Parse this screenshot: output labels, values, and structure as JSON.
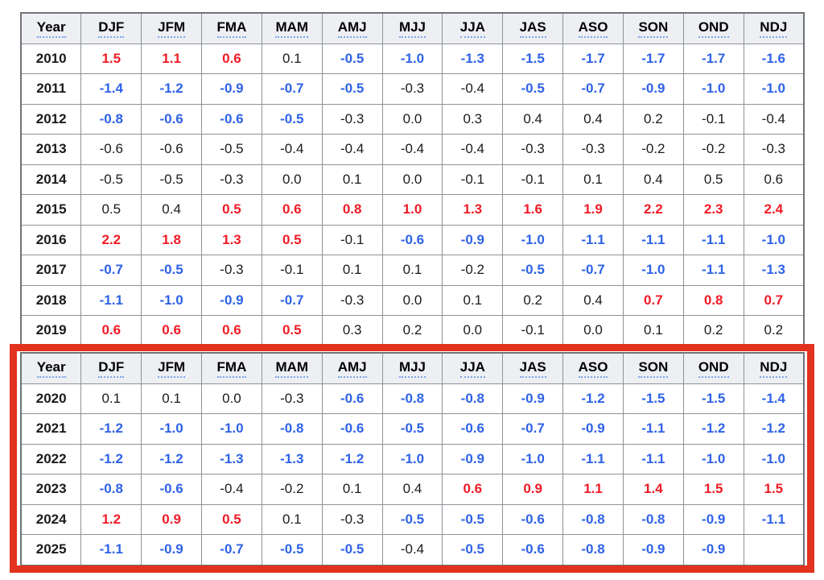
{
  "colors": {
    "positive_value": "#ef1b26",
    "negative_value": "#2e62e7",
    "neutral_value": "#1b1b1b",
    "highlight_border": "#e2331f",
    "header_background": "#edeff3",
    "grid_line": "#8d9297"
  },
  "columns": [
    "Year",
    "DJF",
    "JFM",
    "FMA",
    "MAM",
    "AMJ",
    "MJJ",
    "JJA",
    "JAS",
    "ASO",
    "SON",
    "OND",
    "NDJ"
  ],
  "sections": [
    {
      "name": "years-2010-2019",
      "highlighted": false,
      "rows": [
        {
          "year": "2010",
          "values": [
            "1.5",
            "1.1",
            "0.6",
            "0.1",
            "-0.5",
            "-1.0",
            "-1.3",
            "-1.5",
            "-1.7",
            "-1.7",
            "-1.7",
            "-1.6"
          ],
          "colors": [
            "r",
            "r",
            "r",
            "k",
            "b",
            "b",
            "b",
            "b",
            "b",
            "b",
            "b",
            "b"
          ]
        },
        {
          "year": "2011",
          "values": [
            "-1.4",
            "-1.2",
            "-0.9",
            "-0.7",
            "-0.5",
            "-0.3",
            "-0.4",
            "-0.5",
            "-0.7",
            "-0.9",
            "-1.0",
            "-1.0"
          ],
          "colors": [
            "b",
            "b",
            "b",
            "b",
            "b",
            "k",
            "k",
            "b",
            "b",
            "b",
            "b",
            "b"
          ]
        },
        {
          "year": "2012",
          "values": [
            "-0.8",
            "-0.6",
            "-0.6",
            "-0.5",
            "-0.3",
            "0.0",
            "0.3",
            "0.4",
            "0.4",
            "0.2",
            "-0.1",
            "-0.4"
          ],
          "colors": [
            "b",
            "b",
            "b",
            "b",
            "k",
            "k",
            "k",
            "k",
            "k",
            "k",
            "k",
            "k"
          ]
        },
        {
          "year": "2013",
          "values": [
            "-0.6",
            "-0.6",
            "-0.5",
            "-0.4",
            "-0.4",
            "-0.4",
            "-0.4",
            "-0.3",
            "-0.3",
            "-0.2",
            "-0.2",
            "-0.3"
          ],
          "colors": [
            "k",
            "k",
            "k",
            "k",
            "k",
            "k",
            "k",
            "k",
            "k",
            "k",
            "k",
            "k"
          ]
        },
        {
          "year": "2014",
          "values": [
            "-0.5",
            "-0.5",
            "-0.3",
            "0.0",
            "0.1",
            "0.0",
            "-0.1",
            "-0.1",
            "0.1",
            "0.4",
            "0.5",
            "0.6"
          ],
          "colors": [
            "k",
            "k",
            "k",
            "k",
            "k",
            "k",
            "k",
            "k",
            "k",
            "k",
            "k",
            "k"
          ]
        },
        {
          "year": "2015",
          "values": [
            "0.5",
            "0.4",
            "0.5",
            "0.6",
            "0.8",
            "1.0",
            "1.3",
            "1.6",
            "1.9",
            "2.2",
            "2.3",
            "2.4"
          ],
          "colors": [
            "k",
            "k",
            "r",
            "r",
            "r",
            "r",
            "r",
            "r",
            "r",
            "r",
            "r",
            "r"
          ]
        },
        {
          "year": "2016",
          "values": [
            "2.2",
            "1.8",
            "1.3",
            "0.5",
            "-0.1",
            "-0.6",
            "-0.9",
            "-1.0",
            "-1.1",
            "-1.1",
            "-1.1",
            "-1.0"
          ],
          "colors": [
            "r",
            "r",
            "r",
            "r",
            "k",
            "b",
            "b",
            "b",
            "b",
            "b",
            "b",
            "b"
          ]
        },
        {
          "year": "2017",
          "values": [
            "-0.7",
            "-0.5",
            "-0.3",
            "-0.1",
            "0.1",
            "0.1",
            "-0.2",
            "-0.5",
            "-0.7",
            "-1.0",
            "-1.1",
            "-1.3"
          ],
          "colors": [
            "b",
            "b",
            "k",
            "k",
            "k",
            "k",
            "k",
            "b",
            "b",
            "b",
            "b",
            "b"
          ]
        },
        {
          "year": "2018",
          "values": [
            "-1.1",
            "-1.0",
            "-0.9",
            "-0.7",
            "-0.3",
            "0.0",
            "0.1",
            "0.2",
            "0.4",
            "0.7",
            "0.8",
            "0.7"
          ],
          "colors": [
            "b",
            "b",
            "b",
            "b",
            "k",
            "k",
            "k",
            "k",
            "k",
            "r",
            "r",
            "r"
          ]
        },
        {
          "year": "2019",
          "values": [
            "0.6",
            "0.6",
            "0.6",
            "0.5",
            "0.3",
            "0.2",
            "0.0",
            "-0.1",
            "0.0",
            "0.1",
            "0.2",
            "0.2"
          ],
          "colors": [
            "r",
            "r",
            "r",
            "r",
            "k",
            "k",
            "k",
            "k",
            "k",
            "k",
            "k",
            "k"
          ]
        }
      ]
    },
    {
      "name": "years-2020-2025",
      "highlighted": true,
      "rows": [
        {
          "year": "2020",
          "values": [
            "0.1",
            "0.1",
            "0.0",
            "-0.3",
            "-0.6",
            "-0.8",
            "-0.8",
            "-0.9",
            "-1.2",
            "-1.5",
            "-1.5",
            "-1.4"
          ],
          "colors": [
            "k",
            "k",
            "k",
            "k",
            "b",
            "b",
            "b",
            "b",
            "b",
            "b",
            "b",
            "b"
          ]
        },
        {
          "year": "2021",
          "values": [
            "-1.2",
            "-1.0",
            "-1.0",
            "-0.8",
            "-0.6",
            "-0.5",
            "-0.6",
            "-0.7",
            "-0.9",
            "-1.1",
            "-1.2",
            "-1.2"
          ],
          "colors": [
            "b",
            "b",
            "b",
            "b",
            "b",
            "b",
            "b",
            "b",
            "b",
            "b",
            "b",
            "b"
          ]
        },
        {
          "year": "2022",
          "values": [
            "-1.2",
            "-1.2",
            "-1.3",
            "-1.3",
            "-1.2",
            "-1.0",
            "-0.9",
            "-1.0",
            "-1.1",
            "-1.1",
            "-1.0",
            "-1.0"
          ],
          "colors": [
            "b",
            "b",
            "b",
            "b",
            "b",
            "b",
            "b",
            "b",
            "b",
            "b",
            "b",
            "b"
          ]
        },
        {
          "year": "2023",
          "values": [
            "-0.8",
            "-0.6",
            "-0.4",
            "-0.2",
            "0.1",
            "0.4",
            "0.6",
            "0.9",
            "1.1",
            "1.4",
            "1.5",
            "1.5"
          ],
          "colors": [
            "b",
            "b",
            "k",
            "k",
            "k",
            "k",
            "r",
            "r",
            "r",
            "r",
            "r",
            "r"
          ]
        },
        {
          "year": "2024",
          "values": [
            "1.2",
            "0.9",
            "0.5",
            "0.1",
            "-0.3",
            "-0.5",
            "-0.5",
            "-0.6",
            "-0.8",
            "-0.8",
            "-0.9",
            "-1.1"
          ],
          "colors": [
            "r",
            "r",
            "r",
            "k",
            "k",
            "b",
            "b",
            "b",
            "b",
            "b",
            "b",
            "b"
          ]
        },
        {
          "year": "2025",
          "values": [
            "-1.1",
            "-0.9",
            "-0.7",
            "-0.5",
            "-0.5",
            "-0.4",
            "-0.5",
            "-0.6",
            "-0.8",
            "-0.9",
            "-0.9",
            ""
          ],
          "colors": [
            "b",
            "b",
            "b",
            "b",
            "b",
            "k",
            "b",
            "b",
            "b",
            "b",
            "b",
            "k"
          ]
        }
      ]
    }
  ]
}
